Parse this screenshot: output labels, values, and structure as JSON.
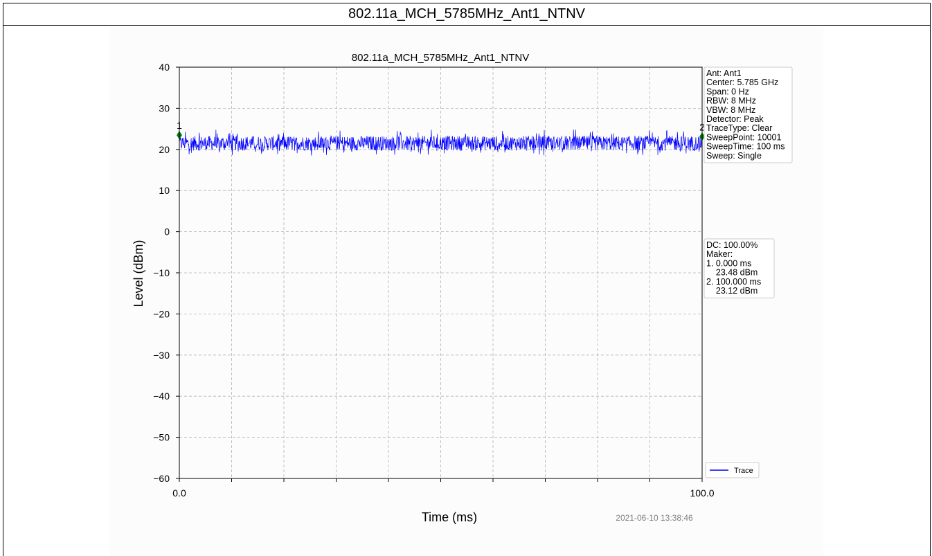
{
  "report": {
    "title": "802.11a_MCH_5785MHz_Ant1_NTNV"
  },
  "timestamp": "2021-06-10 13:38:46",
  "info_box": {
    "lines": [
      "Ant: Ant1",
      "Center: 5.785 GHz",
      "Span: 0 Hz",
      "RBW: 8 MHz",
      "VBW: 8 MHz",
      "Detector: Peak",
      "TraceType: Clear",
      "SweepPoint: 10001",
      "SweepTime: 100 ms",
      "Sweep: Single"
    ]
  },
  "marker_box": {
    "lines": [
      "DC: 100.00%",
      "Maker:",
      "1. 0.000 ms",
      "    23.48 dBm",
      "2. 100.000 ms",
      "    23.12 dBm"
    ]
  },
  "colors": {
    "trace": "#0000ff",
    "marker": "#008000",
    "grid": "#b0b0b0"
  },
  "chart_data": {
    "type": "line",
    "title": "802.11a_MCH_5785MHz_Ant1_NTNV",
    "xlabel": "Time (ms)",
    "ylabel": "Level (dBm)",
    "xlim": [
      0,
      100
    ],
    "ylim": [
      -60,
      40
    ],
    "xtick_labels": [
      "0.0",
      "100.0"
    ],
    "xtick_positions": [
      0,
      10,
      20,
      30,
      40,
      50,
      60,
      70,
      80,
      90,
      100
    ],
    "yticks": [
      40,
      30,
      20,
      10,
      0,
      -10,
      -20,
      -30,
      -40,
      -50,
      -60
    ],
    "ytick_labels": [
      "40",
      "30",
      "20",
      "10",
      "0",
      "−10",
      "−20",
      "−30",
      "−40",
      "−50",
      "−60"
    ],
    "grid": true,
    "legend_position": "bottom-right",
    "series": [
      {
        "name": "Trace",
        "level_min_dbm": 18.5,
        "level_max_dbm": 24.8,
        "level_mean_dbm": 21.5
      }
    ],
    "markers": [
      {
        "label": "1",
        "x": 0.0,
        "y": 23.48
      },
      {
        "label": "2",
        "x": 100.0,
        "y": 23.12
      }
    ]
  }
}
